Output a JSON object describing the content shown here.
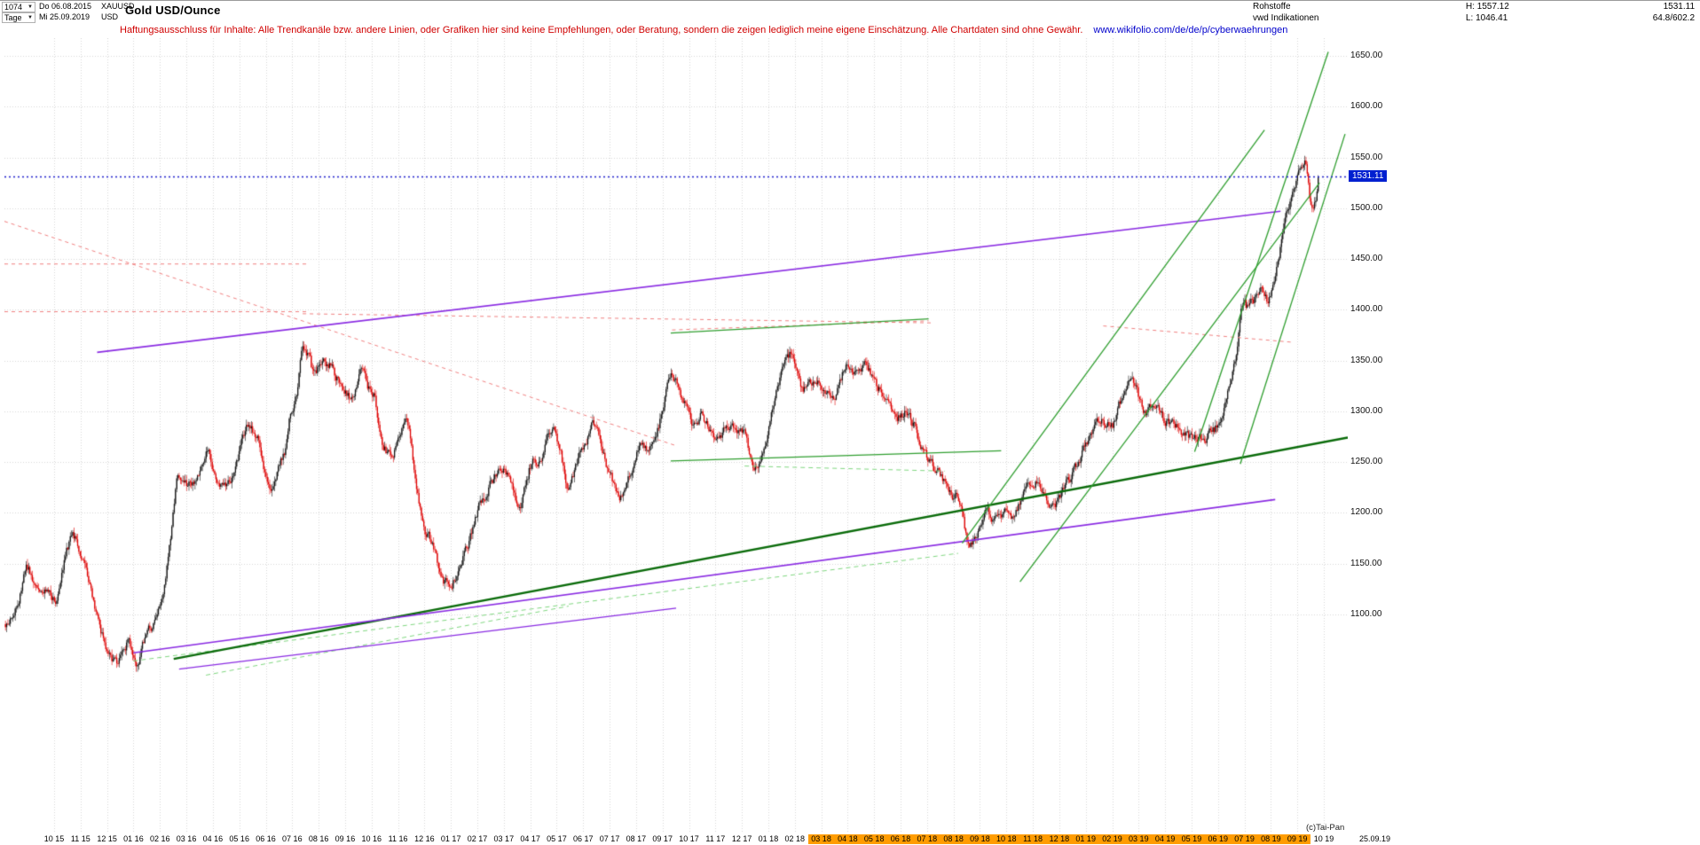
{
  "header": {
    "bars_count": "1074",
    "dropdown_arrow": "▼",
    "start_day": "Do 06.08.2015",
    "symbol": "XAUUSD",
    "period_label": "Tage",
    "end_day": "Mi 25.09.2019",
    "currency": "USD",
    "title": "Gold USD/Ounce",
    "right": {
      "row1_label": "Rohstoffe",
      "high_text": "H: 1557.12",
      "last_value": "1531.11",
      "row2_label": "vwd Indikationen",
      "low_text": "L: 1046.41",
      "ratio_value": "64.8/602.2"
    }
  },
  "disclaimer": {
    "text": "Haftungsausschluss für Inhalte: Alle Trendkanäle bzw. andere Linien, oder Grafiken hier sind keine Empfehlungen, oder Beratung, sondern die zeigen lediglich meine eigene Einschätzung. Alle Chartdaten sind ohne Gewähr.",
    "link": "www.wikifolio.com/de/de/p/cyberwaehrungen"
  },
  "footer": {
    "copyright": "(c)Tai-Pan",
    "date_stamp": "25.09.19"
  },
  "chart_data": {
    "type": "candlestick",
    "title": "Gold USD/Ounce",
    "instrument": "XAUUSD",
    "period": "Tage",
    "bars": 1074,
    "current_price": 1531.11,
    "current_price_label": "1531.11",
    "session_high": 1557.12,
    "session_low": 1046.41,
    "axis": {
      "max": 1650,
      "min": 1100,
      "step": 50
    },
    "y_ticks": [
      "1650.00",
      "1600.00",
      "1550.00",
      "1500.00",
      "1450.00",
      "1400.00",
      "1350.00",
      "1300.00",
      "1250.00",
      "1200.00",
      "1150.00",
      "1100.00"
    ],
    "months_span": 49.63,
    "first_tick_offset_months": 1.84,
    "x_labels": [
      {
        "t": "10 15",
        "hl": false
      },
      {
        "t": "11 15",
        "hl": false
      },
      {
        "t": "12 15",
        "hl": false
      },
      {
        "t": "01 16",
        "hl": false
      },
      {
        "t": "02 16",
        "hl": false
      },
      {
        "t": "03 16",
        "hl": false
      },
      {
        "t": "04 16",
        "hl": false
      },
      {
        "t": "05 16",
        "hl": false
      },
      {
        "t": "06 16",
        "hl": false
      },
      {
        "t": "07 16",
        "hl": false
      },
      {
        "t": "08 16",
        "hl": false
      },
      {
        "t": "09 16",
        "hl": false
      },
      {
        "t": "10 16",
        "hl": false
      },
      {
        "t": "11 16",
        "hl": false
      },
      {
        "t": "12 16",
        "hl": false
      },
      {
        "t": "01 17",
        "hl": false
      },
      {
        "t": "02 17",
        "hl": false
      },
      {
        "t": "03 17",
        "hl": false
      },
      {
        "t": "04 17",
        "hl": false
      },
      {
        "t": "05 17",
        "hl": false
      },
      {
        "t": "06 17",
        "hl": false
      },
      {
        "t": "07 17",
        "hl": false
      },
      {
        "t": "08 17",
        "hl": false
      },
      {
        "t": "09 17",
        "hl": false
      },
      {
        "t": "10 17",
        "hl": false
      },
      {
        "t": "11 17",
        "hl": false
      },
      {
        "t": "12 17",
        "hl": false
      },
      {
        "t": "01 18",
        "hl": false
      },
      {
        "t": "02 18",
        "hl": false
      },
      {
        "t": "03 18",
        "hl": true
      },
      {
        "t": "04 18",
        "hl": true
      },
      {
        "t": "05 18",
        "hl": true
      },
      {
        "t": "06 18",
        "hl": true
      },
      {
        "t": "07 18",
        "hl": true
      },
      {
        "t": "08 18",
        "hl": true
      },
      {
        "t": "09 18",
        "hl": true
      },
      {
        "t": "10 18",
        "hl": true
      },
      {
        "t": "11 18",
        "hl": true
      },
      {
        "t": "12 18",
        "hl": true
      },
      {
        "t": "01 19",
        "hl": true
      },
      {
        "t": "02 19",
        "hl": true
      },
      {
        "t": "03 19",
        "hl": true
      },
      {
        "t": "04 19",
        "hl": true
      },
      {
        "t": "05 19",
        "hl": true
      },
      {
        "t": "06 19",
        "hl": true
      },
      {
        "t": "07 19",
        "hl": true
      },
      {
        "t": "08 19",
        "hl": true
      },
      {
        "t": "09 19",
        "hl": true
      },
      {
        "t": "10 19",
        "hl": false
      }
    ],
    "anchors": [
      [
        0,
        1088
      ],
      [
        0.5,
        1118
      ],
      [
        0.7,
        1158
      ],
      [
        1.0,
        1134
      ],
      [
        1.5,
        1124
      ],
      [
        1.9,
        1114
      ],
      [
        2.3,
        1168
      ],
      [
        2.5,
        1183
      ],
      [
        3.0,
        1142
      ],
      [
        3.5,
        1085
      ],
      [
        3.9,
        1058
      ],
      [
        4.2,
        1050
      ],
      [
        4.6,
        1075
      ],
      [
        4.9,
        1048
      ],
      [
        5.2,
        1078
      ],
      [
        5.6,
        1095
      ],
      [
        5.9,
        1112
      ],
      [
        6.2,
        1180
      ],
      [
        6.45,
        1246
      ],
      [
        6.8,
        1225
      ],
      [
        7.2,
        1238
      ],
      [
        7.6,
        1262
      ],
      [
        7.9,
        1232
      ],
      [
        8.3,
        1222
      ],
      [
        8.8,
        1260
      ],
      [
        9.1,
        1292
      ],
      [
        9.5,
        1272
      ],
      [
        9.9,
        1214
      ],
      [
        10.3,
        1245
      ],
      [
        10.6,
        1265
      ],
      [
        10.75,
        1318
      ],
      [
        10.9,
        1302
      ],
      [
        11.15,
        1360
      ],
      [
        11.3,
        1367
      ],
      [
        11.6,
        1330
      ],
      [
        11.9,
        1352
      ],
      [
        12.3,
        1342
      ],
      [
        12.7,
        1320
      ],
      [
        13.1,
        1312
      ],
      [
        13.35,
        1345
      ],
      [
        13.6,
        1322
      ],
      [
        13.9,
        1318
      ],
      [
        14.15,
        1268
      ],
      [
        14.5,
        1255
      ],
      [
        14.9,
        1278
      ],
      [
        15.15,
        1302
      ],
      [
        15.45,
        1225
      ],
      [
        15.8,
        1180
      ],
      [
        16.1,
        1168
      ],
      [
        16.5,
        1128
      ],
      [
        16.9,
        1135
      ],
      [
        17.2,
        1152
      ],
      [
        17.6,
        1185
      ],
      [
        17.9,
        1212
      ],
      [
        18.3,
        1230
      ],
      [
        18.7,
        1250
      ],
      [
        19.1,
        1225
      ],
      [
        19.35,
        1198
      ],
      [
        19.8,
        1250
      ],
      [
        20.2,
        1254
      ],
      [
        20.55,
        1288
      ],
      [
        20.9,
        1265
      ],
      [
        21.2,
        1220
      ],
      [
        21.6,
        1252
      ],
      [
        21.9,
        1268
      ],
      [
        22.15,
        1292
      ],
      [
        22.5,
        1262
      ],
      [
        22.9,
        1228
      ],
      [
        23.15,
        1208
      ],
      [
        23.5,
        1238
      ],
      [
        23.9,
        1268
      ],
      [
        24.3,
        1260
      ],
      [
        24.7,
        1290
      ],
      [
        25.05,
        1348
      ],
      [
        25.3,
        1328
      ],
      [
        25.6,
        1310
      ],
      [
        25.95,
        1282
      ],
      [
        26.3,
        1298
      ],
      [
        26.6,
        1278
      ],
      [
        26.9,
        1272
      ],
      [
        27.3,
        1288
      ],
      [
        27.6,
        1280
      ],
      [
        27.9,
        1276
      ],
      [
        28.2,
        1242
      ],
      [
        28.6,
        1258
      ],
      [
        28.9,
        1302
      ],
      [
        29.3,
        1340
      ],
      [
        29.65,
        1357
      ],
      [
        30.1,
        1318
      ],
      [
        30.5,
        1330
      ],
      [
        30.9,
        1322
      ],
      [
        31.3,
        1312
      ],
      [
        31.7,
        1350
      ],
      [
        32.1,
        1332
      ],
      [
        32.5,
        1348
      ],
      [
        32.9,
        1322
      ],
      [
        33.3,
        1315
      ],
      [
        33.6,
        1292
      ],
      [
        34.0,
        1300
      ],
      [
        34.4,
        1280
      ],
      [
        34.8,
        1252
      ],
      [
        35.2,
        1242
      ],
      [
        35.6,
        1222
      ],
      [
        36.0,
        1212
      ],
      [
        36.35,
        1162
      ],
      [
        36.7,
        1178
      ],
      [
        37.0,
        1202
      ],
      [
        37.4,
        1192
      ],
      [
        37.8,
        1200
      ],
      [
        38.1,
        1192
      ],
      [
        38.45,
        1224
      ],
      [
        38.9,
        1232
      ],
      [
        39.3,
        1212
      ],
      [
        39.6,
        1202
      ],
      [
        39.9,
        1222
      ],
      [
        40.3,
        1240
      ],
      [
        40.7,
        1262
      ],
      [
        41.0,
        1282
      ],
      [
        41.4,
        1292
      ],
      [
        41.8,
        1282
      ],
      [
        42.2,
        1320
      ],
      [
        42.5,
        1342
      ],
      [
        42.8,
        1312
      ],
      [
        43.1,
        1295
      ],
      [
        43.4,
        1312
      ],
      [
        43.7,
        1292
      ],
      [
        44.1,
        1288
      ],
      [
        44.5,
        1276
      ],
      [
        44.9,
        1270
      ],
      [
        45.3,
        1272
      ],
      [
        45.6,
        1282
      ],
      [
        45.9,
        1288
      ],
      [
        46.2,
        1328
      ],
      [
        46.5,
        1352
      ],
      [
        46.7,
        1423
      ],
      [
        46.9,
        1400
      ],
      [
        47.2,
        1412
      ],
      [
        47.5,
        1426
      ],
      [
        47.7,
        1402
      ],
      [
        48.0,
        1440
      ],
      [
        48.3,
        1490
      ],
      [
        48.55,
        1512
      ],
      [
        48.8,
        1528
      ],
      [
        48.95,
        1546
      ],
      [
        49.1,
        1550
      ],
      [
        49.25,
        1502
      ],
      [
        49.4,
        1488
      ],
      [
        49.55,
        1520
      ],
      [
        49.63,
        1531.11
      ]
    ],
    "trend_lines": [
      {
        "x1": 0.0,
        "p1": 1487,
        "x2": 0.5,
        "p2": 1266,
        "color": "#f08080",
        "w": 1,
        "dash": [
          4,
          4
        ]
      },
      {
        "x1": 0.0,
        "p1": 1445,
        "x2": 0.225,
        "p2": 1445,
        "color": "#f08080",
        "w": 1,
        "dash": [
          4,
          4
        ]
      },
      {
        "x1": 0.0,
        "p1": 1398,
        "x2": 0.227,
        "p2": 1398,
        "color": "#f08080",
        "w": 1,
        "dash": [
          4,
          4
        ]
      },
      {
        "x1": 0.222,
        "p1": 1396,
        "x2": 0.69,
        "p2": 1387,
        "color": "#f08080",
        "w": 1,
        "dash": [
          4,
          4
        ]
      },
      {
        "x1": 0.497,
        "p1": 1380,
        "x2": 0.688,
        "p2": 1389,
        "color": "#f08080",
        "w": 1,
        "dash": [
          4,
          4
        ]
      },
      {
        "x1": 0.818,
        "p1": 1384,
        "x2": 0.958,
        "p2": 1368,
        "color": "#f08080",
        "w": 1,
        "dash": [
          4,
          4
        ]
      },
      {
        "x1": 0.496,
        "p1": 1377,
        "x2": 0.688,
        "p2": 1391,
        "color": "#2f9e2f",
        "w": 1.2,
        "dash": []
      },
      {
        "x1": 0.496,
        "p1": 1251,
        "x2": 0.742,
        "p2": 1261,
        "color": "#2f9e2f",
        "w": 1.2,
        "dash": []
      },
      {
        "x1": 0.551,
        "p1": 1246,
        "x2": 0.7,
        "p2": 1241,
        "color": "#7fd67f",
        "w": 1,
        "dash": [
          5,
          4
        ]
      },
      {
        "x1": 0.096,
        "p1": 1054,
        "x2": 0.71,
        "p2": 1160,
        "color": "#7fd67f",
        "w": 1,
        "dash": [
          5,
          4
        ]
      },
      {
        "x1": 0.15,
        "p1": 1040,
        "x2": 0.42,
        "p2": 1108,
        "color": "#7fd67f",
        "w": 1,
        "dash": [
          5,
          4
        ]
      },
      {
        "x1": 0.126,
        "p1": 1056,
        "x2": 1.0,
        "p2": 1274,
        "color": "#0a6b0a",
        "w": 2.5,
        "dash": []
      },
      {
        "x1": 0.069,
        "p1": 1358,
        "x2": 0.95,
        "p2": 1497,
        "color": "#8a2be2",
        "w": 1.6,
        "dash": []
      },
      {
        "x1": 0.096,
        "p1": 1062,
        "x2": 0.946,
        "p2": 1213,
        "color": "#8a2be2",
        "w": 1.6,
        "dash": []
      },
      {
        "x1": 0.13,
        "p1": 1046,
        "x2": 0.5,
        "p2": 1106,
        "color": "#8a2be2",
        "w": 1.2,
        "dash": []
      },
      {
        "x1": 0.713,
        "p1": 1170,
        "x2": 0.938,
        "p2": 1577,
        "color": "#2f9e2f",
        "w": 1.3,
        "dash": []
      },
      {
        "x1": 0.756,
        "p1": 1132,
        "x2": 0.979,
        "p2": 1525,
        "color": "#2f9e2f",
        "w": 1.3,
        "dash": []
      },
      {
        "x1": 0.886,
        "p1": 1260,
        "x2": 0.9855,
        "p2": 1654,
        "color": "#2f9e2f",
        "w": 1.3,
        "dash": []
      },
      {
        "x1": 0.92,
        "p1": 1248,
        "x2": 0.998,
        "p2": 1573,
        "color": "#2f9e2f",
        "w": 1.3,
        "dash": []
      }
    ],
    "colors": {
      "candle_up": "#141414",
      "candle_down": "#dd0000",
      "grid": "#d6d6d6",
      "last_price_line": "#2020cc",
      "last_price_bg": "#0020d0",
      "highlight_band": "#ff9c00"
    }
  }
}
